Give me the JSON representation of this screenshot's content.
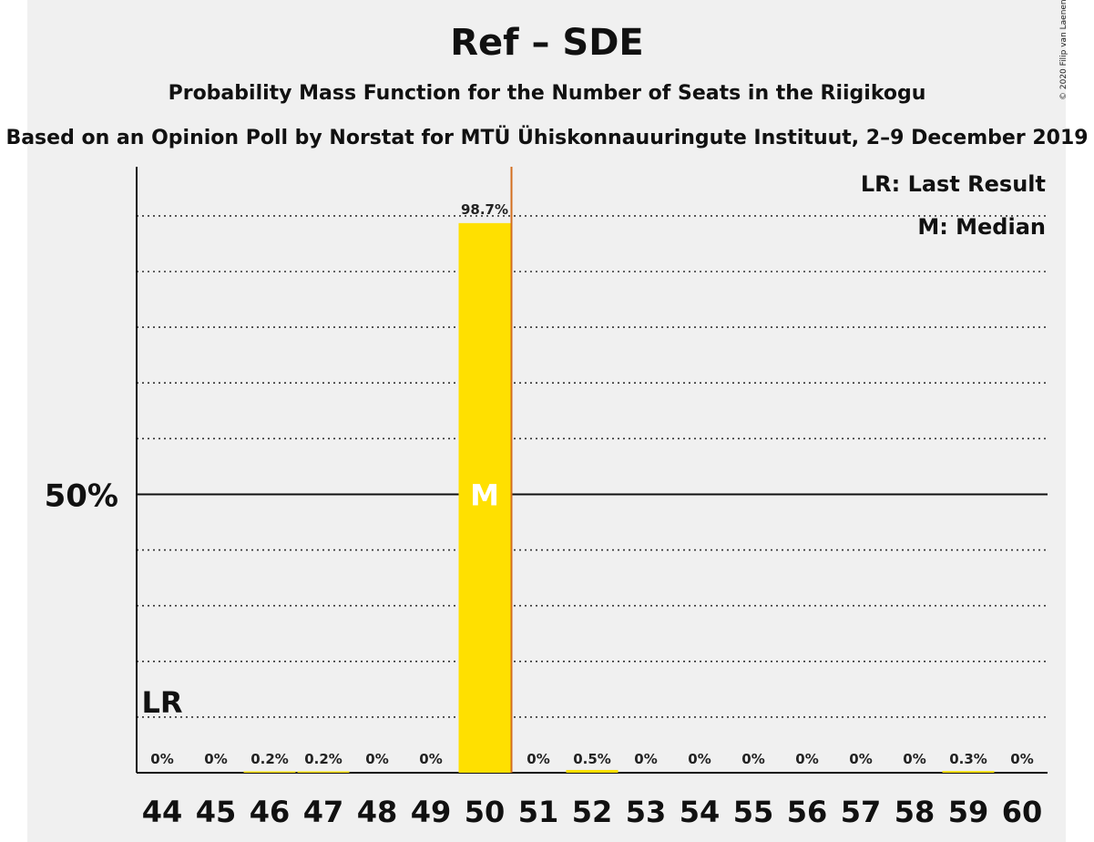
{
  "chart_data": {
    "type": "bar",
    "title": "Ref – SDE",
    "subtitle": "Probability Mass Function for the Number of Seats in the Riigikogu",
    "subtitle2": "Based on an Opinion Poll by Norstat for MTÜ Ühiskonnauuringute Instituut, 2–9 December 2019",
    "copyright": "© 2020 Filip van Laenen",
    "categories": [
      "44",
      "45",
      "46",
      "47",
      "48",
      "49",
      "50",
      "51",
      "52",
      "53",
      "54",
      "55",
      "56",
      "57",
      "58",
      "59",
      "60"
    ],
    "values": [
      0,
      0,
      0.2,
      0.2,
      0,
      0,
      98.7,
      0,
      0.5,
      0,
      0,
      0,
      0,
      0,
      0,
      0.3,
      0
    ],
    "value_labels": [
      "0%",
      "0%",
      "0.2%",
      "0.2%",
      "0%",
      "0%",
      "98.7%",
      "0%",
      "0.5%",
      "0%",
      "0%",
      "0%",
      "0%",
      "0%",
      "0%",
      "0.3%",
      "0%"
    ],
    "ylim": [
      0,
      108
    ],
    "y_tick_label": "50%",
    "y_tick_value": 50,
    "grid_step": 10,
    "grid": true,
    "last_result": "44",
    "last_result_marker": "LR",
    "median": "50",
    "median_marker": "M",
    "legend": [
      "LR: Last Result",
      "M: Median"
    ],
    "legend_position": "top-right",
    "bar_color": "#ffe000",
    "last_result_line_color": "#d36e1e"
  }
}
